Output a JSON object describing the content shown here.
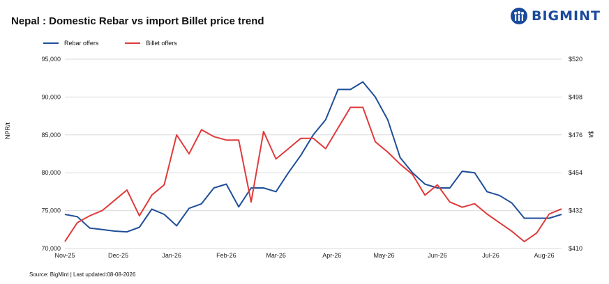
{
  "header": {
    "title": "Nepal : Domestic Rebar vs import Billet price trend",
    "brand": "BIGMINT"
  },
  "source": "Source: BigMint | Last updated:08-08-2026",
  "colors": {
    "rebar": "#1f4e99",
    "billet": "#e03a3a",
    "brand": "#1a4a9c"
  },
  "chart_data": {
    "type": "line",
    "title": "Nepal : Domestic Rebar vs import Billet price trend",
    "ylabel": "NPR/t",
    "y2label": "$/t",
    "ylim": [
      70000,
      95000
    ],
    "y2lim": [
      410,
      520
    ],
    "yticks": [
      "70,000",
      "75,000",
      "80,000",
      "85,000",
      "90,000",
      "95,000"
    ],
    "y2ticks": [
      "$410",
      "$432",
      "$454",
      "$476",
      "$498",
      "$520"
    ],
    "xlim": [
      0,
      40
    ],
    "xticks": [
      {
        "label": "Nov-25",
        "x": 0
      },
      {
        "label": "Dec-25",
        "x": 4.3
      },
      {
        "label": "Jan-26",
        "x": 8.6
      },
      {
        "label": "Feb-26",
        "x": 13
      },
      {
        "label": "Mar-26",
        "x": 17
      },
      {
        "label": "Apr-26",
        "x": 21.5
      },
      {
        "label": "May-26",
        "x": 25.7
      },
      {
        "label": "Jun-26",
        "x": 30
      },
      {
        "label": "Jul-26",
        "x": 34.3
      },
      {
        "label": "Aug-26",
        "x": 38.6
      }
    ],
    "legend_position": "top-left",
    "grid": true,
    "series": [
      {
        "name": "Rebar offers",
        "axis": "left",
        "x": [
          0,
          1,
          2,
          3,
          4,
          5,
          6,
          7,
          8,
          9,
          10,
          11,
          12,
          13,
          14,
          15,
          16,
          17,
          18,
          19,
          20,
          21,
          22,
          23,
          24,
          25,
          26,
          27,
          28,
          29,
          30,
          31,
          32,
          33,
          34,
          35,
          36,
          37,
          38,
          39,
          40
        ],
        "values": [
          74500,
          74200,
          72700,
          72500,
          72300,
          72200,
          72800,
          75200,
          74500,
          73000,
          75300,
          75900,
          78000,
          78500,
          75500,
          78000,
          78000,
          77500,
          80000,
          82300,
          85000,
          87000,
          91000,
          91000,
          92000,
          90000,
          87000,
          82000,
          80000,
          78500,
          78000,
          78000,
          80200,
          80000,
          77500,
          77000,
          76000,
          74000,
          74000,
          74000,
          74500
        ]
      },
      {
        "name": "Billet offers",
        "axis": "right",
        "x": [
          0,
          1,
          2,
          3,
          4,
          5,
          6,
          7,
          8,
          9,
          10,
          11,
          12,
          13,
          14,
          15,
          16,
          17,
          18,
          19,
          20,
          21,
          22,
          23,
          24,
          25,
          26,
          27,
          28,
          29,
          30,
          31,
          32,
          33,
          34,
          35,
          36,
          37,
          38,
          39,
          40
        ],
        "values": [
          414,
          425,
          429,
          432,
          438,
          444,
          429,
          441,
          447,
          476,
          465,
          479,
          475,
          473,
          473,
          437,
          478,
          462,
          468,
          474,
          474,
          468,
          480,
          492,
          492,
          472,
          466,
          459,
          453,
          441,
          447,
          437,
          434,
          436,
          430,
          425,
          420,
          414,
          419,
          430,
          433
        ]
      }
    ]
  }
}
